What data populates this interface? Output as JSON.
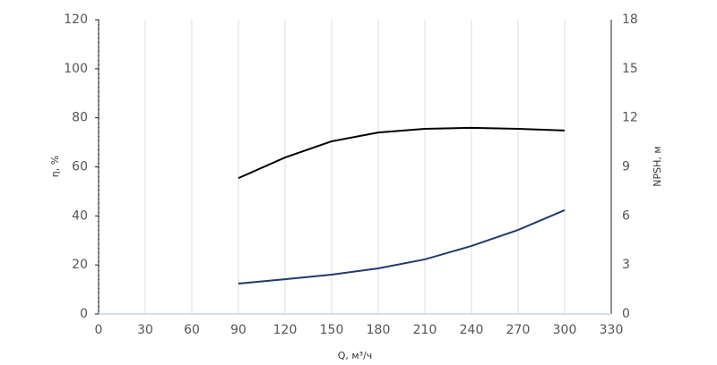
{
  "chart_data": {
    "type": "line",
    "x_label": "Q, м³/ч",
    "y_label": "η, %",
    "y2_label": "NPSH, м",
    "xlim": [
      0,
      330
    ],
    "xticks": [
      0,
      30,
      60,
      90,
      120,
      150,
      180,
      210,
      240,
      270,
      300,
      330
    ],
    "ylim": [
      0,
      120
    ],
    "yticks": [
      0,
      20,
      40,
      60,
      80,
      100,
      120
    ],
    "y2lim": [
      0,
      18
    ],
    "y2ticks": [
      0,
      3,
      6,
      9,
      12,
      15,
      18
    ],
    "grid": true,
    "series": [
      {
        "color": "#000000",
        "x": [
          90,
          120,
          150,
          180,
          210,
          240,
          270,
          300
        ],
        "values": [
          55.4,
          63.8,
          70.4,
          74,
          75.5,
          75.9,
          75.5,
          74.8
        ]
      },
      {
        "color": "#1f3a6e",
        "axis": "y2",
        "x": [
          90,
          120,
          150,
          180,
          210,
          240,
          270,
          300
        ],
        "values": [
          1.86,
          2.13,
          2.41,
          2.79,
          3.34,
          4.16,
          5.14,
          6.35
        ]
      }
    ]
  }
}
